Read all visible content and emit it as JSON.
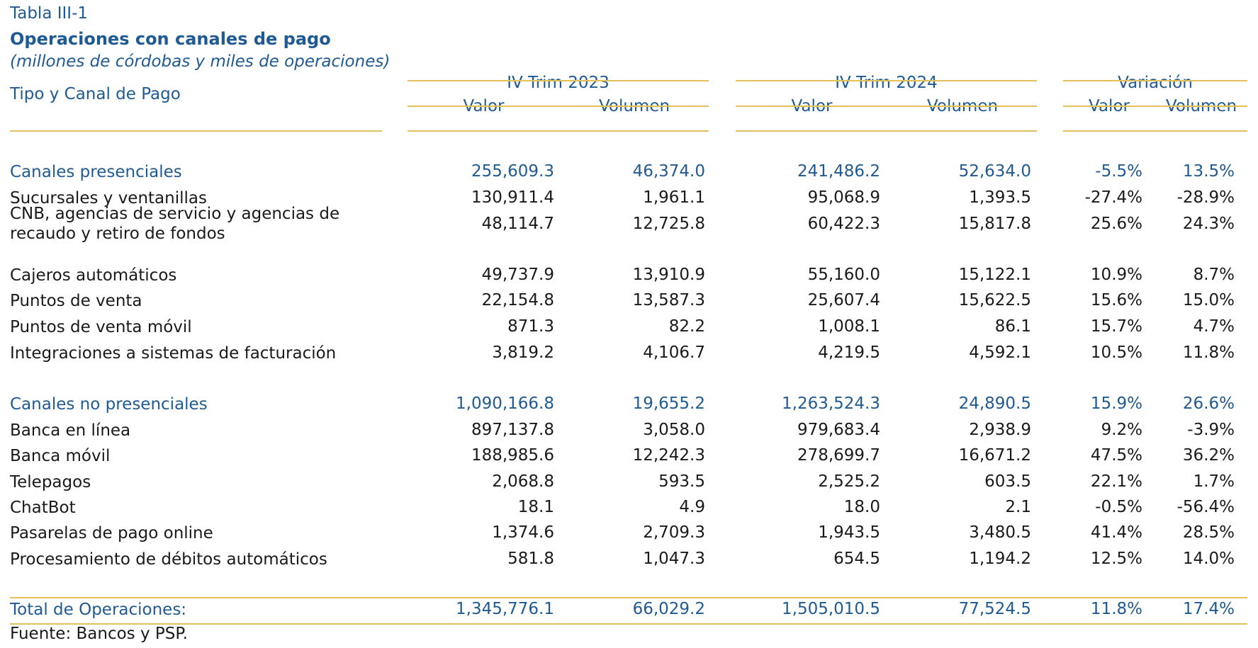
{
  "table": {
    "kicker": "Tabla III-1",
    "title": "Operaciones con canales de pago",
    "subtitle": "(millones de córdobas y miles de operaciones)",
    "row_header": "Tipo y Canal de Pago",
    "groups": [
      "IV Trim 2023",
      "IV Trim 2024",
      "Variación"
    ],
    "subheaders": [
      "Valor",
      "Volumen",
      "Valor",
      "Volumen",
      "Valor",
      "Volumen"
    ],
    "rows": [
      {
        "label": "Canales presenciales",
        "type": "section",
        "values": [
          "255,609.3",
          "46,374.0",
          "241,486.2",
          "52,634.0",
          "-5.5%",
          "13.5%"
        ]
      },
      {
        "label": "Sucursales y ventanillas",
        "type": "item",
        "values": [
          "130,911.4",
          "1,961.1",
          "95,068.9",
          "1,393.5",
          "-27.4%",
          "-28.9%"
        ]
      },
      {
        "label": "CNB, agencias de servicio y agencias de\nrecaudo y retiro de fondos",
        "type": "item",
        "values": [
          "48,114.7",
          "12,725.8",
          "60,422.3",
          "15,817.8",
          "25.6%",
          "24.3%"
        ]
      },
      {
        "label": "Cajeros automáticos",
        "type": "item",
        "values": [
          "49,737.9",
          "13,910.9",
          "55,160.0",
          "15,122.1",
          "10.9%",
          "8.7%"
        ]
      },
      {
        "label": "Puntos de venta",
        "type": "item",
        "values": [
          "22,154.8",
          "13,587.3",
          "25,607.4",
          "15,622.5",
          "15.6%",
          "15.0%"
        ]
      },
      {
        "label": "Puntos de venta móvil",
        "type": "item",
        "values": [
          "871.3",
          "82.2",
          "1,008.1",
          "86.1",
          "15.7%",
          "4.7%"
        ]
      },
      {
        "label": "Integraciones a sistemas de facturación",
        "type": "item",
        "values": [
          "3,819.2",
          "4,106.7",
          "4,219.5",
          "4,592.1",
          "10.5%",
          "11.8%"
        ]
      },
      {
        "label": "Canales no presenciales",
        "type": "section",
        "values": [
          "1,090,166.8",
          "19,655.2",
          "1,263,524.3",
          "24,890.5",
          "15.9%",
          "26.6%"
        ]
      },
      {
        "label": "Banca en línea",
        "type": "item",
        "values": [
          "897,137.8",
          "3,058.0",
          "979,683.4",
          "2,938.9",
          "9.2%",
          "-3.9%"
        ]
      },
      {
        "label": "Banca móvil",
        "type": "item",
        "values": [
          "188,985.6",
          "12,242.3",
          "278,699.7",
          "16,671.2",
          "47.5%",
          "36.2%"
        ]
      },
      {
        "label": "Telepagos",
        "type": "item",
        "values": [
          "2,068.8",
          "593.5",
          "2,525.2",
          "603.5",
          "22.1%",
          "1.7%"
        ]
      },
      {
        "label": "ChatBot",
        "type": "item",
        "values": [
          "18.1",
          "4.9",
          "18.0",
          "2.1",
          "-0.5%",
          "-56.4%"
        ]
      },
      {
        "label": "Pasarelas de pago online",
        "type": "item",
        "values": [
          "1,374.6",
          "2,709.3",
          "1,943.5",
          "3,480.5",
          "41.4%",
          "28.5%"
        ]
      },
      {
        "label": "Procesamiento de débitos automáticos",
        "type": "item",
        "values": [
          "581.8",
          "1,047.3",
          "654.5",
          "1,194.2",
          "12.5%",
          "14.0%"
        ]
      },
      {
        "label": "Total de Operaciones:",
        "type": "total",
        "values": [
          "1,345,776.1",
          "66,029.2",
          "1,505,010.5",
          "77,524.5",
          "11.8%",
          "17.4%"
        ]
      }
    ],
    "source": "Fuente: Bancos y PSP."
  }
}
